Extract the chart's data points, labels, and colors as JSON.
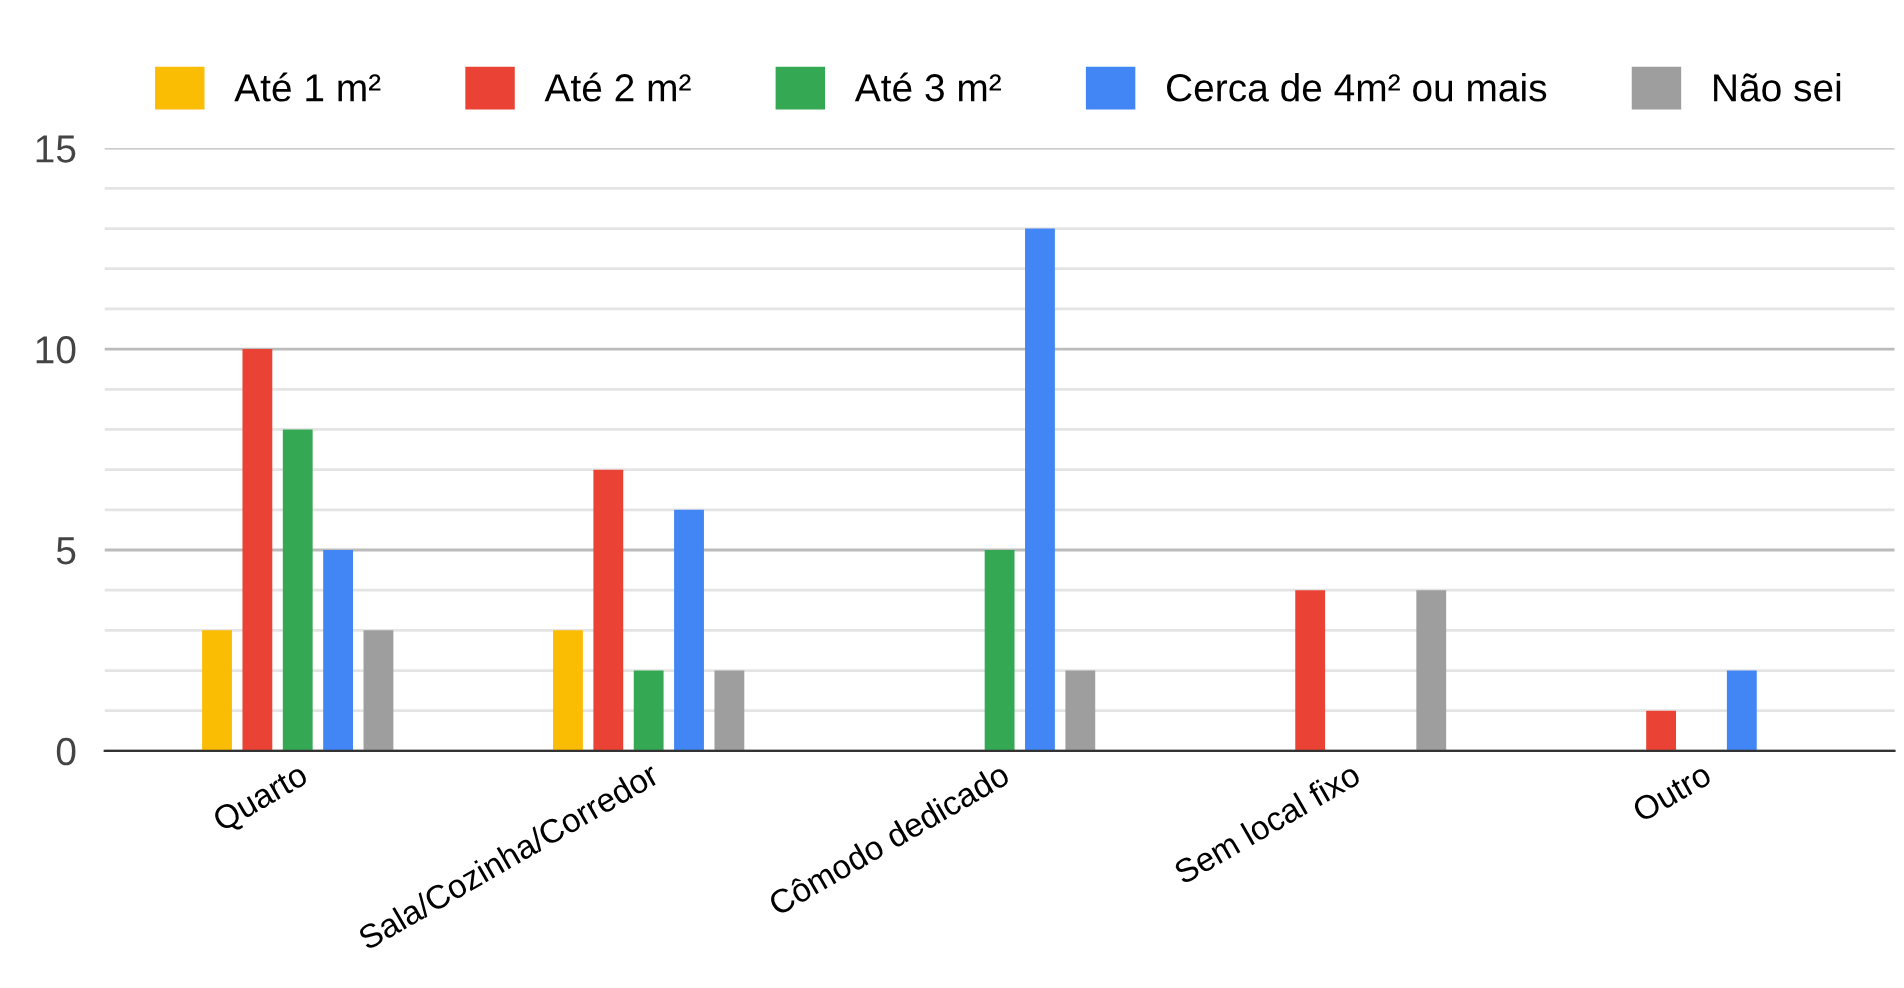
{
  "chart_data": {
    "type": "bar",
    "categories": [
      "Quarto",
      "Sala/Cozinha/Corredor",
      "Cômodo dedicado",
      "Sem local fixo",
      "Outro"
    ],
    "series": [
      {
        "name": "Até 1 m²",
        "color": "#fbbc04",
        "values": [
          3,
          3,
          null,
          null,
          null
        ]
      },
      {
        "name": "Até 2 m²",
        "color": "#ea4335",
        "values": [
          10,
          7,
          null,
          4,
          1
        ]
      },
      {
        "name": "Até 3 m²",
        "color": "#34a853",
        "values": [
          8,
          2,
          5,
          null,
          null
        ]
      },
      {
        "name": "Cerca de 4m² ou mais",
        "color": "#4285f4",
        "values": [
          5,
          6,
          13,
          null,
          2
        ]
      },
      {
        "name": "Não sei",
        "color": "#9e9e9e",
        "values": [
          3,
          2,
          2,
          4,
          null
        ]
      }
    ],
    "ylim": [
      0,
      15
    ],
    "yticks": [
      0,
      {
        "value": 1,
        "label": null
      },
      {
        "value": 2,
        "label": null
      },
      {
        "value": 3,
        "label": null
      },
      {
        "value": 4,
        "label": null
      },
      5,
      {
        "value": 6,
        "label": null
      },
      {
        "value": 7,
        "label": null
      },
      {
        "value": 8,
        "label": null
      },
      {
        "value": 9,
        "label": null
      },
      10,
      {
        "value": 11,
        "label": null
      },
      {
        "value": 12,
        "label": null
      },
      {
        "value": 13,
        "label": null
      },
      {
        "value": 14,
        "label": null
      },
      15
    ],
    "grid": "y",
    "legend": "top"
  }
}
